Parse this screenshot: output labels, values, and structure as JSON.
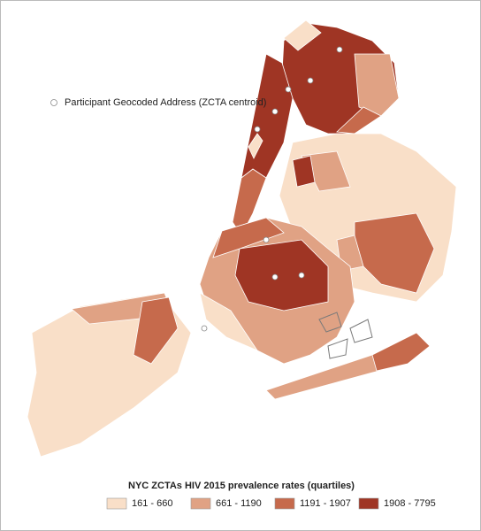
{
  "points_legend": {
    "label": "Participant Geocoded Address (ZCTA centroid)"
  },
  "legend": {
    "title": "NYC ZCTAs HIV 2015 prevalence rates (quartiles)",
    "items": [
      {
        "label": "161 - 660",
        "color": "#f9dfc8"
      },
      {
        "label": "661 - 1190",
        "color": "#e0a284"
      },
      {
        "label": "1191 - 1907",
        "color": "#c66a4c"
      },
      {
        "label": "1908 - 7795",
        "color": "#9f3524"
      }
    ]
  }
}
